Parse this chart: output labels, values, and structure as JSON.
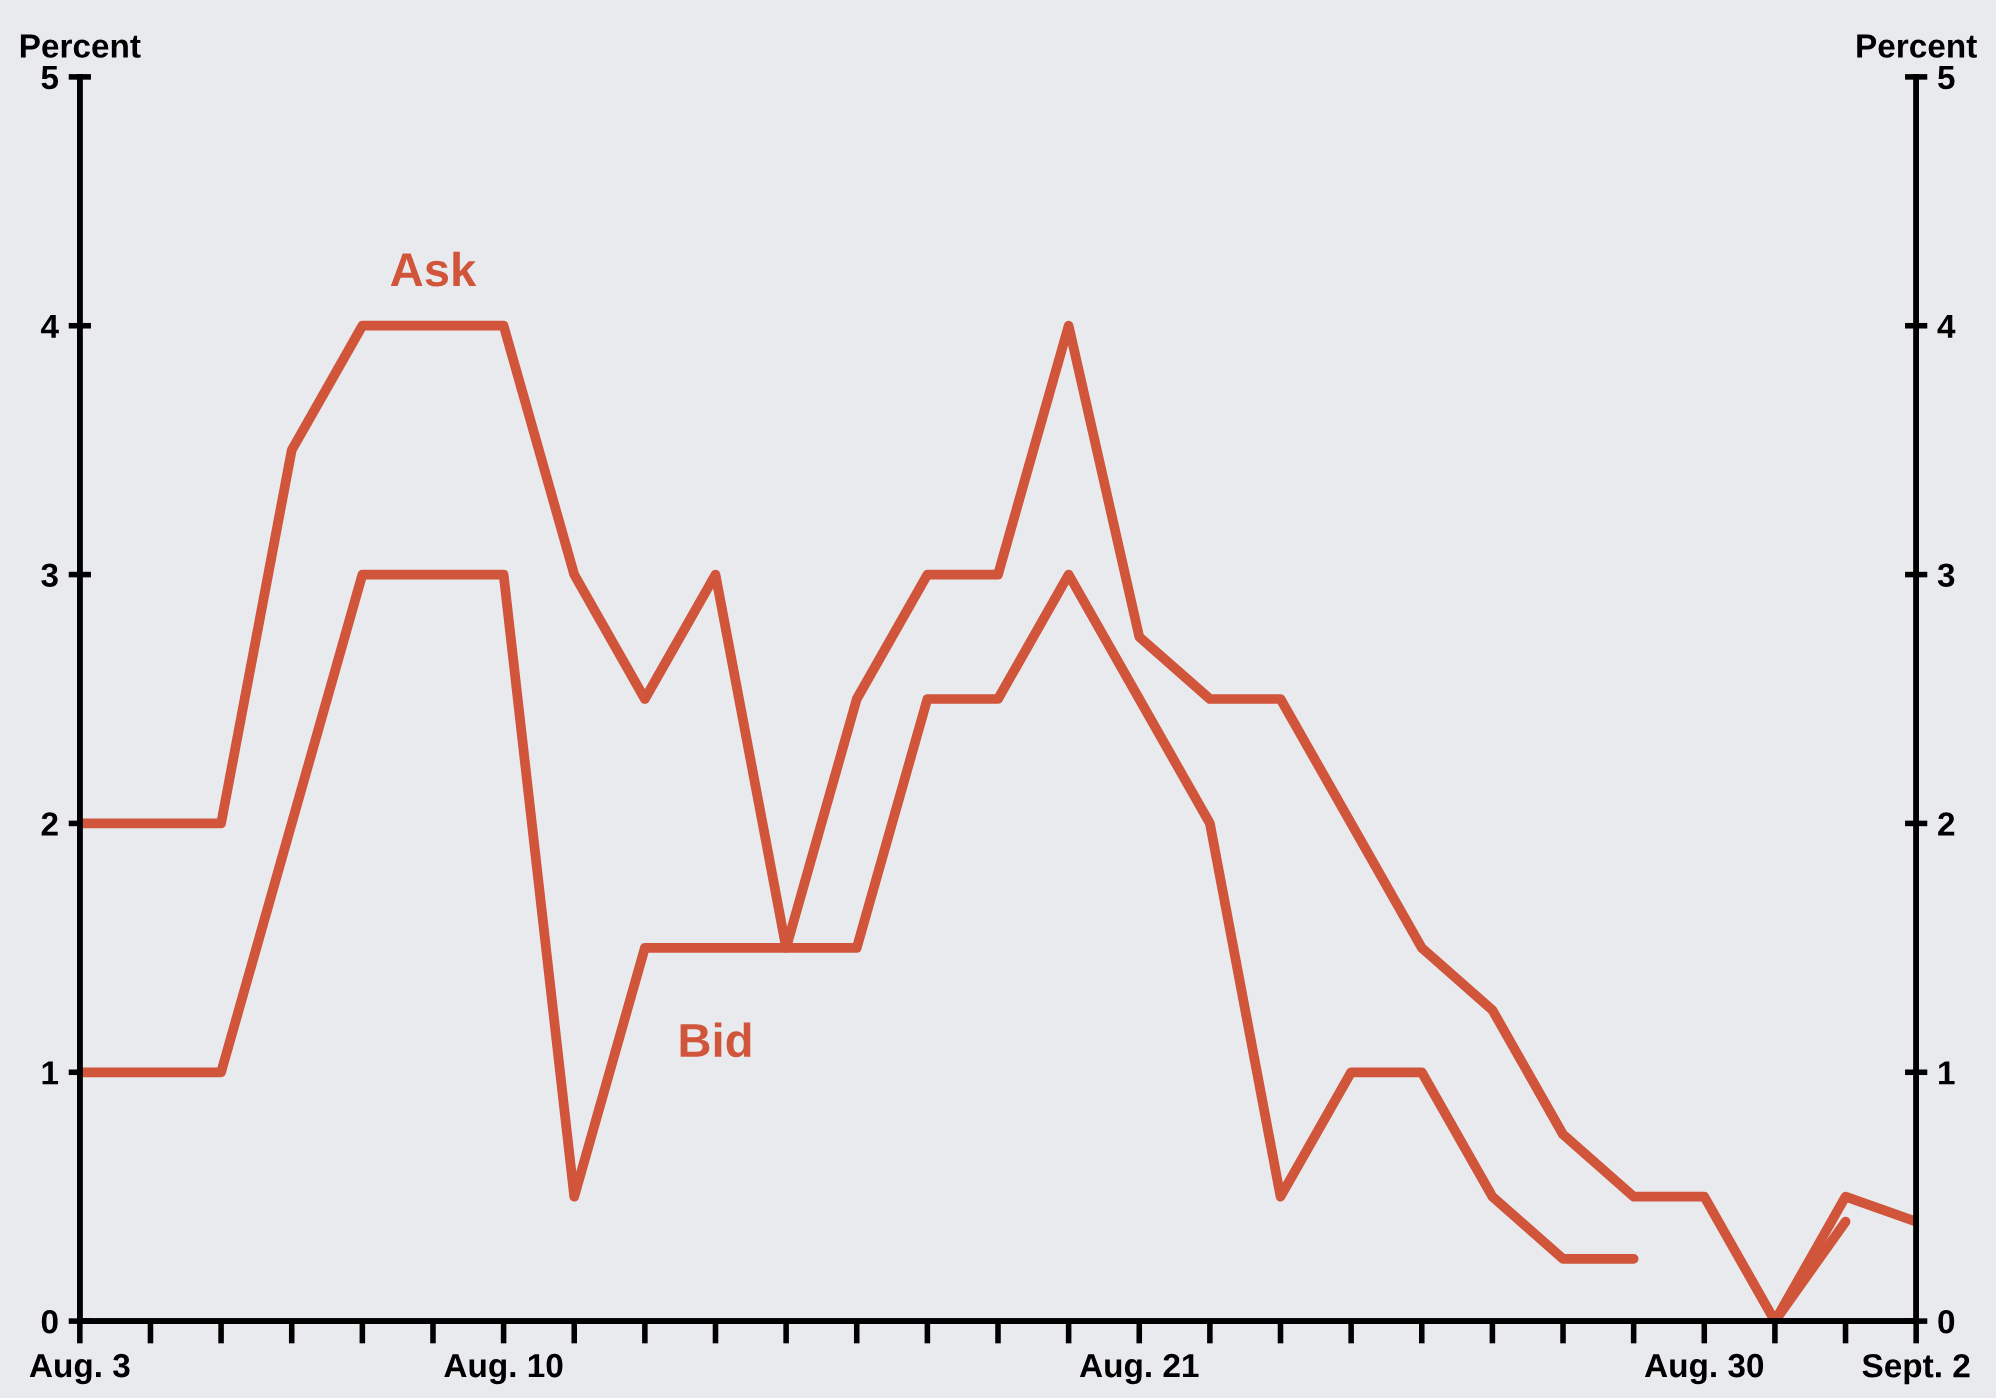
{
  "chart_data": {
    "type": "line",
    "ylabel": "Percent",
    "y2label": "Percent",
    "categories": [
      "Aug. 3",
      null,
      null,
      null,
      null,
      null,
      "Aug. 10",
      null,
      null,
      null,
      null,
      null,
      null,
      null,
      null,
      "Aug. 21",
      null,
      null,
      null,
      null,
      null,
      null,
      null,
      "Aug. 30",
      null,
      null,
      "Sept. 2"
    ],
    "series": [
      {
        "name": "Ask",
        "color": "#d0553a",
        "values": [
          2.0,
          2.0,
          2.0,
          3.5,
          4.0,
          4.0,
          4.0,
          3.0,
          2.5,
          3.0,
          1.5,
          2.5,
          3.0,
          3.0,
          4.0,
          2.75,
          2.5,
          2.5,
          2.0,
          1.5,
          1.25,
          0.75,
          0.5,
          0.5,
          0.0,
          0.5,
          0.4
        ]
      },
      {
        "name": "Bid",
        "color": "#d0553a",
        "values": [
          1.0,
          1.0,
          1.0,
          2.0,
          3.0,
          3.0,
          3.0,
          0.5,
          1.5,
          1.5,
          1.5,
          1.5,
          2.5,
          2.5,
          3.0,
          2.5,
          2.0,
          0.5,
          1.0,
          1.0,
          0.5,
          0.25,
          0.25,
          null,
          0.0,
          0.4,
          null
        ]
      }
    ],
    "ylim": [
      0,
      5
    ],
    "yticks": [
      0,
      1,
      2,
      3,
      4,
      5
    ],
    "y2lim": [
      0,
      5
    ],
    "y2ticks": [
      0,
      1,
      2,
      3,
      4,
      5
    ],
    "grid": false,
    "legend": false,
    "marker": "none",
    "line_style": "solid"
  }
}
